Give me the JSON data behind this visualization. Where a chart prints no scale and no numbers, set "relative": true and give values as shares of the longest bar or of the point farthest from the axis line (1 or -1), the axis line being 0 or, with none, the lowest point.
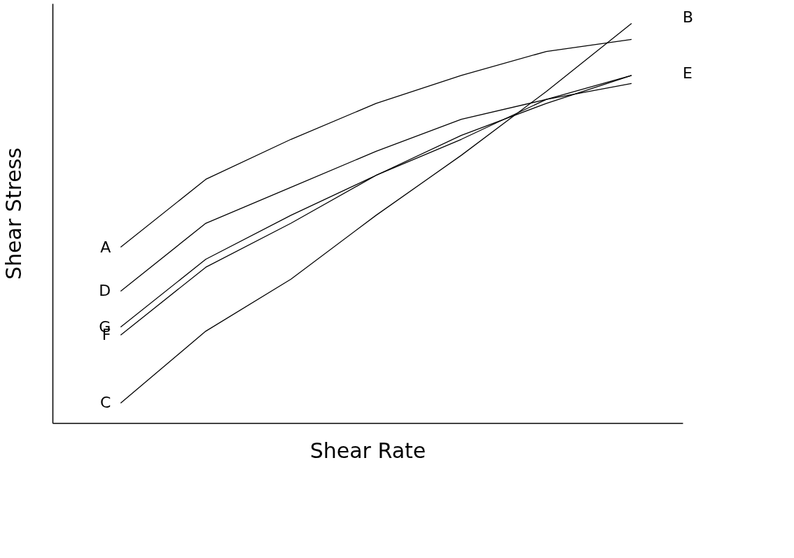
{
  "chart_data": {
    "type": "line",
    "relative": true,
    "xlabel": "Shear Rate",
    "ylabel": "Shear Stress",
    "tick_labels": false,
    "legend": false,
    "marker": "none",
    "line_style": "solid",
    "categories": [
      null,
      null,
      null,
      null,
      null,
      null,
      null
    ],
    "series": [
      {
        "name": "A",
        "color": "#000000",
        "values": [
          0.44,
          0.61,
          0.71,
          0.8,
          0.87,
          0.93,
          0.96
        ]
      },
      {
        "name": "D",
        "color": "#000000",
        "values": [
          0.33,
          0.5,
          0.59,
          0.68,
          0.76,
          0.81,
          0.85
        ]
      },
      {
        "name": "G",
        "color": "#000000",
        "values": [
          0.24,
          0.41,
          0.52,
          0.62,
          0.72,
          0.8,
          0.87
        ]
      },
      {
        "name": "F",
        "color": "#000000",
        "values": [
          0.22,
          0.39,
          0.5,
          0.62,
          0.71,
          0.81,
          0.87
        ]
      },
      {
        "name": "C",
        "color": "#000000",
        "values": [
          0.05,
          0.23,
          0.36,
          0.52,
          0.67,
          0.83,
          1.0
        ]
      }
    ],
    "annotations": [
      "B",
      "E"
    ]
  }
}
